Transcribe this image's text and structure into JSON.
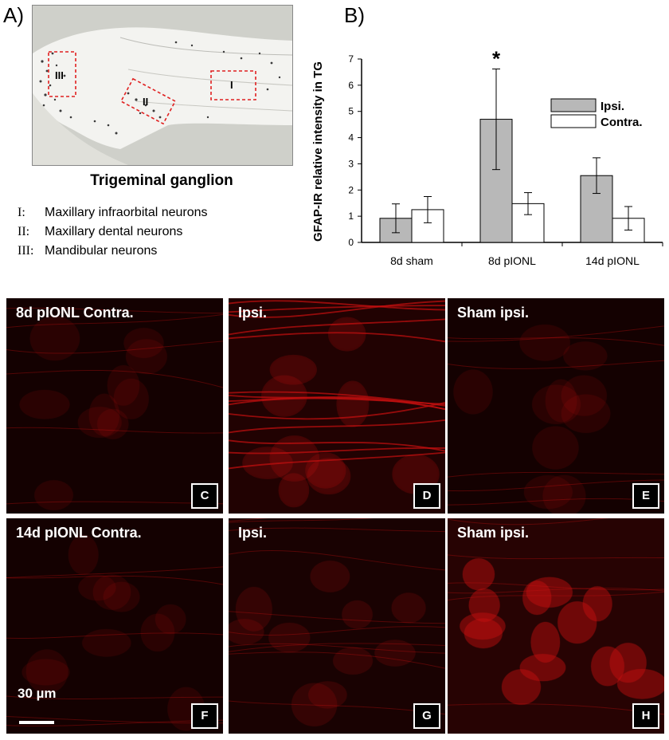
{
  "panel_a": {
    "letter": "A)",
    "regions": [
      {
        "id": "I",
        "label": "I"
      },
      {
        "id": "II",
        "label": "II"
      },
      {
        "id": "III",
        "label": "III"
      }
    ],
    "title": "Trigeminal ganglion",
    "legend": [
      {
        "roman": "I:",
        "text": "Maxillary infraorbital neurons"
      },
      {
        "roman": "II:",
        "text": "Maxillary dental neurons"
      },
      {
        "roman": "III:",
        "text": "Mandibular neurons"
      }
    ]
  },
  "panel_b": {
    "letter": "B)",
    "significance_marker": "*"
  },
  "chart_data": {
    "type": "bar",
    "title": "",
    "xlabel": "",
    "ylabel": "GFAP-IR relative intensity in TG",
    "categories": [
      "8d sham",
      "8d pIONL",
      "14d pIONL"
    ],
    "ylim": [
      0,
      7
    ],
    "yticks": [
      "0",
      "1",
      "2",
      "3",
      "4",
      "5",
      "6",
      "7"
    ],
    "series": [
      {
        "name": "Ipsi.",
        "values": [
          0.92,
          4.7,
          2.55
        ],
        "errors": [
          0.55,
          1.92,
          0.68
        ],
        "color": "#b8b8b8"
      },
      {
        "name": "Contra.",
        "values": [
          1.25,
          1.48,
          0.92
        ],
        "errors": [
          0.5,
          0.42,
          0.45
        ],
        "color": "#ffffff"
      }
    ],
    "annotations": [
      {
        "category": "8d pIONL",
        "series": "Ipsi.",
        "text": "*"
      }
    ],
    "legend_position": "top-right",
    "grid": false
  },
  "micrographs": [
    {
      "label": "8d pIONL Contra.",
      "letter": "C",
      "intensity": "low"
    },
    {
      "label": "Ipsi.",
      "letter": "D",
      "intensity": "high"
    },
    {
      "label": "Sham ipsi.",
      "letter": "E",
      "intensity": "low"
    },
    {
      "label": "14d pIONL Contra.",
      "letter": "F",
      "intensity": "low"
    },
    {
      "label": "Ipsi.",
      "letter": "G",
      "intensity": "medium"
    },
    {
      "label": "Sham ipsi.",
      "letter": "H",
      "intensity": "diffuse"
    }
  ],
  "scalebar": {
    "text": "30 µm"
  },
  "colors": {
    "fluorescence": "#c81010",
    "background": "#070000"
  }
}
